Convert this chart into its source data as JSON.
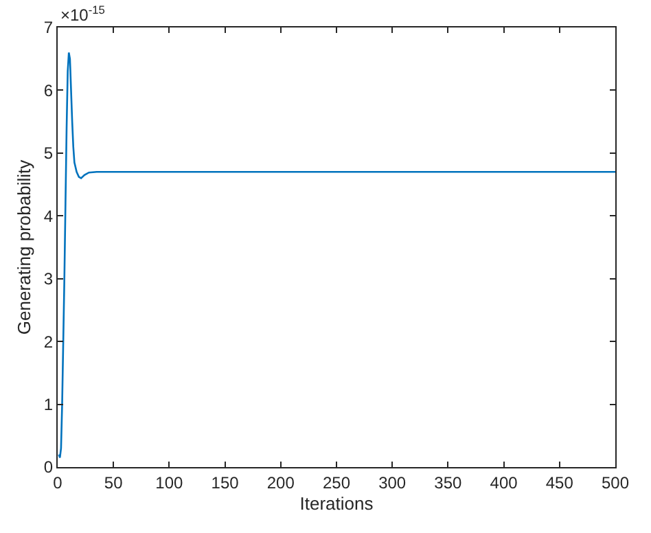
{
  "chart_data": {
    "type": "line",
    "xlabel": "Iterations",
    "ylabel": "Generating probability",
    "annotations": [
      "×10$^{-15}$"
    ],
    "x": [
      1,
      2,
      3,
      4,
      5,
      6,
      7,
      8,
      9,
      10,
      11,
      12,
      13,
      14,
      15,
      17,
      19,
      21,
      24,
      28,
      35,
      100,
      200,
      300,
      400,
      500
    ],
    "series": [
      {
        "color": "#0072bd",
        "values": [
          0.2,
          0.15,
          0.3,
          1.0,
          2.0,
          3.0,
          4.2,
          5.4,
          6.3,
          6.6,
          6.5,
          6.0,
          5.5,
          5.1,
          4.85,
          4.7,
          4.62,
          4.6,
          4.65,
          4.69,
          4.7,
          4.7,
          4.7,
          4.7,
          4.7,
          4.7
        ]
      }
    ],
    "xlim": [
      0,
      500
    ],
    "xticks": [
      0,
      50,
      100,
      150,
      200,
      250,
      300,
      350,
      400,
      450,
      500
    ],
    "ylim": [
      0,
      7
    ],
    "yticks": [
      0,
      1,
      2,
      3,
      4,
      5,
      6,
      7
    ],
    "marker": "none",
    "line_style": "solid"
  }
}
